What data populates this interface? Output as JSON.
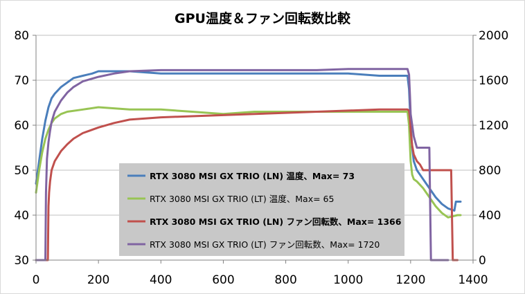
{
  "chart_data": {
    "type": "line",
    "title": "GPU温度＆ファン回転数比較",
    "xlabel": "",
    "ylabel": "",
    "y2label": "",
    "xlim": [
      0,
      1400
    ],
    "ylim": [
      30,
      80
    ],
    "y2lim": [
      0,
      2000
    ],
    "x_ticks": [
      "0",
      "200",
      "400",
      "600",
      "800",
      "1000",
      "1200",
      "1400"
    ],
    "y_ticks": [
      "30",
      "40",
      "50",
      "60",
      "70",
      "80"
    ],
    "y2_ticks": [
      "0",
      "400",
      "800",
      "1200",
      "1600",
      "2000"
    ],
    "grid": "horizontal",
    "legend_position": "center-bottom",
    "series": [
      {
        "name": "RTX 3080 MSI GX TRIO (LN) 温度、Max= 73",
        "axis": "left",
        "color": "#4a7ebb",
        "bold": true,
        "x": [
          0,
          10,
          20,
          30,
          40,
          50,
          60,
          80,
          100,
          120,
          150,
          180,
          200,
          250,
          300,
          400,
          500,
          600,
          700,
          800,
          900,
          1000,
          1100,
          1190,
          1195,
          1200,
          1205,
          1210,
          1220,
          1240,
          1260,
          1280,
          1300,
          1320,
          1340,
          1345,
          1360
        ],
        "y": [
          47,
          52,
          57,
          61,
          64,
          66,
          67,
          68.5,
          69.5,
          70.5,
          71,
          71.5,
          72,
          72,
          72,
          71.5,
          71.5,
          71.5,
          71.5,
          71.5,
          71.5,
          71.5,
          71,
          71,
          68,
          60,
          55,
          52,
          50,
          48,
          46,
          44,
          42.5,
          41.5,
          41,
          43,
          43
        ]
      },
      {
        "name": "RTX 3080 MSI GX TRIO (LT) 温度、Max= 65",
        "axis": "left",
        "color": "#98c454",
        "bold": false,
        "x": [
          0,
          10,
          20,
          30,
          40,
          50,
          60,
          80,
          100,
          150,
          200,
          300,
          400,
          500,
          600,
          700,
          800,
          900,
          1000,
          1100,
          1190,
          1195,
          1200,
          1205,
          1210,
          1220,
          1240,
          1260,
          1280,
          1300,
          1320,
          1350,
          1360
        ],
        "y": [
          45,
          50,
          54,
          57,
          59,
          60.5,
          61.5,
          62.5,
          63,
          63.5,
          64,
          63.5,
          63.5,
          63,
          62.5,
          63,
          63,
          63,
          63,
          63,
          63,
          60,
          52,
          49,
          48,
          47.5,
          46,
          44,
          42,
          40.5,
          39.5,
          40,
          40
        ]
      },
      {
        "name": "RTX 3080 MSI GX TRIO (LN) ファン回転数、Max= 1366",
        "axis": "right",
        "color": "#c0504d",
        "bold": true,
        "x": [
          0,
          35,
          38,
          40,
          42,
          45,
          50,
          60,
          80,
          100,
          120,
          150,
          200,
          250,
          300,
          400,
          500,
          600,
          700,
          800,
          900,
          1000,
          1100,
          1190,
          1195,
          1198,
          1200,
          1205,
          1210,
          1220,
          1230,
          1240,
          1260,
          1280,
          1300,
          1320,
          1330,
          1335,
          1350
        ],
        "y": [
          0,
          0,
          0,
          480,
          600,
          700,
          800,
          880,
          970,
          1030,
          1080,
          1130,
          1180,
          1220,
          1250,
          1270,
          1280,
          1290,
          1300,
          1310,
          1320,
          1330,
          1340,
          1340,
          1330,
          1250,
          1150,
          1020,
          940,
          880,
          850,
          800,
          800,
          800,
          800,
          800,
          800,
          0,
          0
        ]
      },
      {
        "name": "RTX 3080 MSI GX TRIO (LT) ファン回転数、Max= 1720",
        "axis": "right",
        "color": "#8064a2",
        "bold": false,
        "x": [
          0,
          30,
          32,
          35,
          40,
          45,
          50,
          60,
          80,
          100,
          120,
          150,
          200,
          250,
          300,
          400,
          500,
          600,
          700,
          800,
          900,
          1000,
          1100,
          1190,
          1195,
          1198,
          1200,
          1210,
          1220,
          1230,
          1240,
          1260,
          1265,
          1300,
          1320
        ],
        "y": [
          0,
          0,
          600,
          900,
          1050,
          1150,
          1230,
          1320,
          1420,
          1490,
          1540,
          1590,
          1630,
          1660,
          1680,
          1690,
          1690,
          1690,
          1690,
          1690,
          1690,
          1700,
          1700,
          1700,
          1650,
          1450,
          1300,
          1100,
          1000,
          1000,
          1000,
          1000,
          0,
          0,
          0
        ]
      }
    ]
  }
}
